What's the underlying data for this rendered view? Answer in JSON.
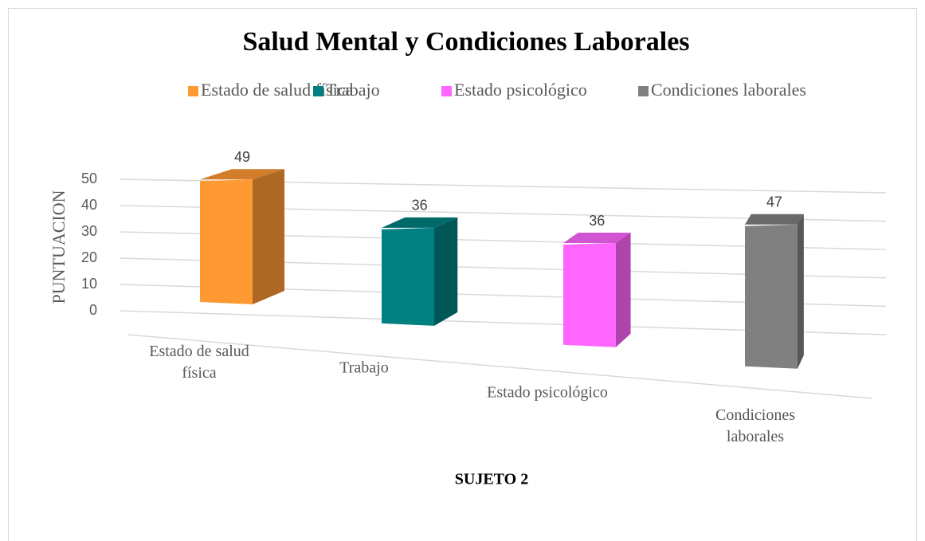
{
  "chart_data": {
    "type": "bar3d",
    "title": "Salud Mental y Condiciones Laborales",
    "categories": [
      "Estado de salud física",
      "Trabajo",
      "Estado psicológico",
      "Condiciones laborales"
    ],
    "values": [
      49,
      36,
      36,
      47
    ],
    "colors": [
      "#ff9933",
      "#008080",
      "#ff66ff",
      "#808080"
    ],
    "y_label": "PUNTUACION",
    "x_label": "SUJETO 2",
    "ylim": [
      0,
      50
    ],
    "yticks": [
      0,
      10,
      20,
      30,
      40,
      50
    ],
    "grid": true,
    "legend": "top",
    "data_labels": true
  }
}
